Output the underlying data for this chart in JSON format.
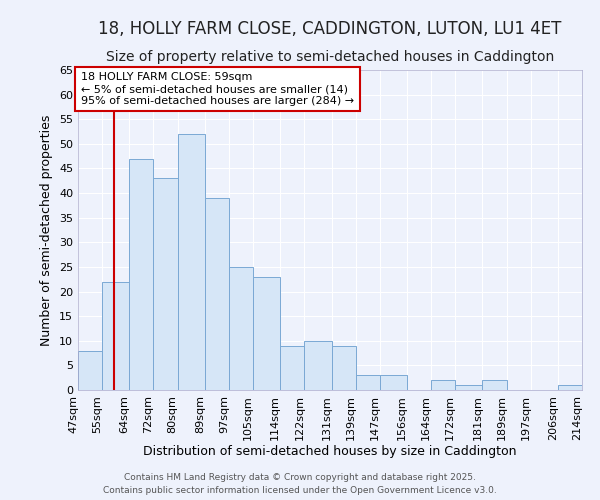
{
  "title": "18, HOLLY FARM CLOSE, CADDINGTON, LUTON, LU1 4ET",
  "subtitle": "Size of property relative to semi-detached houses in Caddington",
  "xlabel": "Distribution of semi-detached houses by size in Caddington",
  "ylabel": "Number of semi-detached properties",
  "bins": [
    47,
    55,
    64,
    72,
    80,
    89,
    97,
    105,
    114,
    122,
    131,
    139,
    147,
    156,
    164,
    172,
    181,
    189,
    197,
    206,
    214
  ],
  "counts": [
    8,
    22,
    47,
    43,
    52,
    39,
    25,
    23,
    9,
    10,
    9,
    3,
    3,
    0,
    2,
    1,
    2,
    0,
    0,
    1
  ],
  "bar_color": "#d6e6f7",
  "bar_edge_color": "#7aa8d4",
  "ylim": [
    0,
    65
  ],
  "yticks": [
    0,
    5,
    10,
    15,
    20,
    25,
    30,
    35,
    40,
    45,
    50,
    55,
    60,
    65
  ],
  "red_line_x": 59,
  "annotation_title": "18 HOLLY FARM CLOSE: 59sqm",
  "annotation_line1": "← 5% of semi-detached houses are smaller (14)",
  "annotation_line2": "95% of semi-detached houses are larger (284) →",
  "annotation_box_color": "#ffffff",
  "annotation_box_edge": "#cc0000",
  "red_line_color": "#cc0000",
  "background_color": "#eef2fc",
  "grid_color": "#ffffff",
  "footer1": "Contains HM Land Registry data © Crown copyright and database right 2025.",
  "footer2": "Contains public sector information licensed under the Open Government Licence v3.0.",
  "title_fontsize": 12,
  "subtitle_fontsize": 10,
  "tick_label_fontsize": 8,
  "ylabel_fontsize": 9,
  "xlabel_fontsize": 9,
  "footer_fontsize": 6.5
}
